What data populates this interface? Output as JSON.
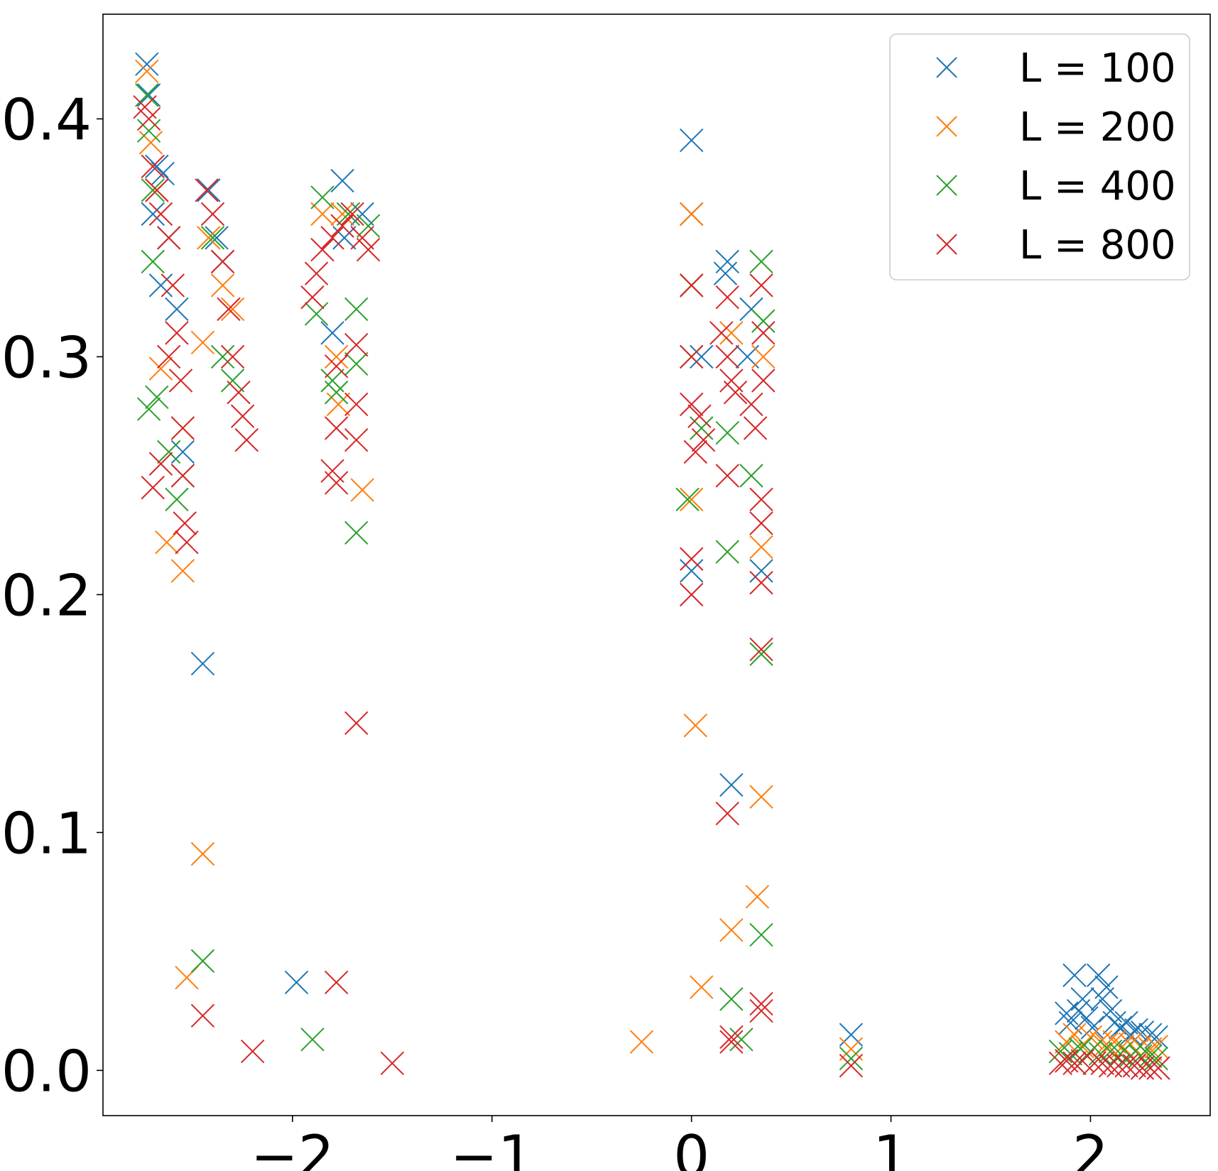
{
  "chart_data": {
    "type": "scatter",
    "title": "",
    "xlabel": "",
    "ylabel": "",
    "xlim": [
      -2.95,
      2.6
    ],
    "ylim": [
      -0.019,
      0.444
    ],
    "x_ticks": [
      -2,
      -1,
      0,
      1,
      2
    ],
    "x_tick_labels": [
      "−2",
      "−1",
      "0",
      "1",
      "2"
    ],
    "y_ticks": [
      0.0,
      0.1,
      0.2,
      0.3,
      0.4
    ],
    "y_tick_labels": [
      "0.0",
      "0.1",
      "0.2",
      "0.3",
      "0.4"
    ],
    "grid": false,
    "legend_position": "top-right",
    "marker": "x",
    "series": [
      {
        "name": "L = 100",
        "color": "#1f77b4",
        "points": [
          [
            -2.73,
            0.423
          ],
          [
            -2.72,
            0.41
          ],
          [
            -2.68,
            0.38
          ],
          [
            -2.65,
            0.377
          ],
          [
            -2.7,
            0.36
          ],
          [
            -2.62,
            0.35
          ],
          [
            -2.66,
            0.33
          ],
          [
            -2.58,
            0.32
          ],
          [
            -2.55,
            0.26
          ],
          [
            -2.45,
            0.171
          ],
          [
            -2.42,
            0.37
          ],
          [
            -2.38,
            0.35
          ],
          [
            -2.35,
            0.34
          ],
          [
            -1.98,
            0.037
          ],
          [
            -1.75,
            0.374
          ],
          [
            -1.8,
            0.31
          ],
          [
            -1.74,
            0.35
          ],
          [
            -1.65,
            0.36
          ],
          [
            0.0,
            0.391
          ],
          [
            0.0,
            0.36
          ],
          [
            0.05,
            0.3
          ],
          [
            0.0,
            0.21
          ],
          [
            0.18,
            0.34
          ],
          [
            0.17,
            0.335
          ],
          [
            0.2,
            0.12
          ],
          [
            0.28,
            0.3
          ],
          [
            0.3,
            0.32
          ],
          [
            0.35,
            0.21
          ],
          [
            0.8,
            0.015
          ],
          [
            1.88,
            0.024
          ],
          [
            1.9,
            0.02
          ],
          [
            1.92,
            0.04
          ],
          [
            1.94,
            0.025
          ],
          [
            1.96,
            0.03
          ],
          [
            1.98,
            0.022
          ],
          [
            2.01,
            0.018
          ],
          [
            2.04,
            0.04
          ],
          [
            2.06,
            0.03
          ],
          [
            2.08,
            0.035
          ],
          [
            2.1,
            0.025
          ],
          [
            2.12,
            0.02
          ],
          [
            2.15,
            0.018
          ],
          [
            2.18,
            0.02
          ],
          [
            2.2,
            0.015
          ],
          [
            2.23,
            0.017
          ],
          [
            2.26,
            0.016
          ],
          [
            2.3,
            0.015
          ],
          [
            2.33,
            0.014
          ]
        ]
      },
      {
        "name": "L = 200",
        "color": "#ff7f0e",
        "points": [
          [
            -2.73,
            0.42
          ],
          [
            -2.71,
            0.39
          ],
          [
            -2.68,
            0.37
          ],
          [
            -2.66,
            0.295
          ],
          [
            -2.63,
            0.222
          ],
          [
            -2.55,
            0.21
          ],
          [
            -2.55,
            0.27
          ],
          [
            -2.53,
            0.039
          ],
          [
            -2.45,
            0.306
          ],
          [
            -2.45,
            0.091
          ],
          [
            -2.42,
            0.35
          ],
          [
            -2.35,
            0.33
          ],
          [
            -2.3,
            0.32
          ],
          [
            -1.85,
            0.36
          ],
          [
            -1.75,
            0.36
          ],
          [
            -1.78,
            0.3
          ],
          [
            -1.77,
            0.28
          ],
          [
            -1.65,
            0.244
          ],
          [
            -0.25,
            0.012
          ],
          [
            0.0,
            0.36
          ],
          [
            0.0,
            0.33
          ],
          [
            0.0,
            0.24
          ],
          [
            0.02,
            0.145
          ],
          [
            0.05,
            0.035
          ],
          [
            0.2,
            0.059
          ],
          [
            0.2,
            0.31
          ],
          [
            0.33,
            0.073
          ],
          [
            0.35,
            0.115
          ],
          [
            0.35,
            0.22
          ],
          [
            0.36,
            0.3
          ],
          [
            0.8,
            0.009
          ],
          [
            1.88,
            0.012
          ],
          [
            1.92,
            0.015
          ],
          [
            1.96,
            0.01
          ],
          [
            2.0,
            0.014
          ],
          [
            2.05,
            0.012
          ],
          [
            2.08,
            0.011
          ],
          [
            2.12,
            0.012
          ],
          [
            2.16,
            0.01
          ],
          [
            2.2,
            0.011
          ],
          [
            2.25,
            0.01
          ],
          [
            2.3,
            0.009
          ],
          [
            2.33,
            0.01
          ]
        ]
      },
      {
        "name": "L = 400",
        "color": "#2ca02c",
        "points": [
          [
            -2.73,
            0.41
          ],
          [
            -2.72,
            0.395
          ],
          [
            -2.7,
            0.37
          ],
          [
            -2.7,
            0.34
          ],
          [
            -2.72,
            0.278
          ],
          [
            -2.68,
            0.283
          ],
          [
            -2.62,
            0.26
          ],
          [
            -2.58,
            0.24
          ],
          [
            -2.55,
            0.25
          ],
          [
            -2.45,
            0.046
          ],
          [
            -2.4,
            0.35
          ],
          [
            -2.35,
            0.3
          ],
          [
            -2.3,
            0.29
          ],
          [
            -1.9,
            0.013
          ],
          [
            -1.88,
            0.318
          ],
          [
            -1.85,
            0.367
          ],
          [
            -1.8,
            0.29
          ],
          [
            -1.78,
            0.285
          ],
          [
            -1.72,
            0.36
          ],
          [
            -1.68,
            0.226
          ],
          [
            -1.68,
            0.297
          ],
          [
            -1.68,
            0.32
          ],
          [
            -1.62,
            0.355
          ],
          [
            -0.02,
            0.24
          ],
          [
            0.0,
            0.33
          ],
          [
            0.0,
            0.3
          ],
          [
            0.05,
            0.27
          ],
          [
            0.18,
            0.268
          ],
          [
            0.18,
            0.218
          ],
          [
            0.2,
            0.03
          ],
          [
            0.25,
            0.013
          ],
          [
            0.3,
            0.25
          ],
          [
            0.35,
            0.057
          ],
          [
            0.35,
            0.175
          ],
          [
            0.35,
            0.34
          ],
          [
            0.36,
            0.315
          ],
          [
            0.8,
            0.005
          ],
          [
            1.85,
            0.008
          ],
          [
            1.9,
            0.007
          ],
          [
            1.95,
            0.009
          ],
          [
            2.0,
            0.008
          ],
          [
            2.05,
            0.007
          ],
          [
            2.1,
            0.008
          ],
          [
            2.15,
            0.007
          ],
          [
            2.2,
            0.006
          ],
          [
            2.25,
            0.006
          ],
          [
            2.3,
            0.006
          ],
          [
            2.33,
            0.005
          ]
        ]
      },
      {
        "name": "L = 800",
        "color": "#d62728",
        "points": [
          [
            -2.74,
            0.405
          ],
          [
            -2.72,
            0.4
          ],
          [
            -2.7,
            0.38
          ],
          [
            -2.68,
            0.37
          ],
          [
            -2.66,
            0.36
          ],
          [
            -2.62,
            0.35
          ],
          [
            -2.6,
            0.33
          ],
          [
            -2.58,
            0.31
          ],
          [
            -2.56,
            0.29
          ],
          [
            -2.55,
            0.27
          ],
          [
            -2.55,
            0.25
          ],
          [
            -2.54,
            0.23
          ],
          [
            -2.53,
            0.222
          ],
          [
            -2.7,
            0.245
          ],
          [
            -2.66,
            0.255
          ],
          [
            -2.62,
            0.3
          ],
          [
            -2.45,
            0.023
          ],
          [
            -2.43,
            0.37
          ],
          [
            -2.4,
            0.36
          ],
          [
            -2.35,
            0.34
          ],
          [
            -2.32,
            0.32
          ],
          [
            -2.3,
            0.3
          ],
          [
            -2.27,
            0.285
          ],
          [
            -2.25,
            0.275
          ],
          [
            -2.23,
            0.265
          ],
          [
            -2.2,
            0.008
          ],
          [
            -1.78,
            0.037
          ],
          [
            -1.9,
            0.325
          ],
          [
            -1.88,
            0.335
          ],
          [
            -1.85,
            0.345
          ],
          [
            -1.8,
            0.35
          ],
          [
            -1.75,
            0.355
          ],
          [
            -1.7,
            0.36
          ],
          [
            -1.65,
            0.35
          ],
          [
            -1.62,
            0.345
          ],
          [
            -1.78,
            0.296
          ],
          [
            -1.78,
            0.27
          ],
          [
            -1.8,
            0.252
          ],
          [
            -1.78,
            0.247
          ],
          [
            -1.68,
            0.305
          ],
          [
            -1.68,
            0.28
          ],
          [
            -1.68,
            0.265
          ],
          [
            -1.68,
            0.146
          ],
          [
            -1.5,
            0.003
          ],
          [
            0.0,
            0.33
          ],
          [
            0.0,
            0.3
          ],
          [
            0.0,
            0.28
          ],
          [
            0.02,
            0.26
          ],
          [
            0.0,
            0.215
          ],
          [
            0.0,
            0.2
          ],
          [
            0.04,
            0.275
          ],
          [
            0.06,
            0.265
          ],
          [
            0.15,
            0.31
          ],
          [
            0.18,
            0.3
          ],
          [
            0.2,
            0.29
          ],
          [
            0.22,
            0.285
          ],
          [
            0.18,
            0.25
          ],
          [
            0.18,
            0.325
          ],
          [
            0.18,
            0.108
          ],
          [
            0.2,
            0.014
          ],
          [
            0.2,
            0.012
          ],
          [
            0.3,
            0.28
          ],
          [
            0.32,
            0.27
          ],
          [
            0.35,
            0.33
          ],
          [
            0.36,
            0.31
          ],
          [
            0.36,
            0.29
          ],
          [
            0.35,
            0.24
          ],
          [
            0.35,
            0.23
          ],
          [
            0.35,
            0.205
          ],
          [
            0.35,
            0.177
          ],
          [
            0.35,
            0.028
          ],
          [
            0.35,
            0.025
          ],
          [
            0.8,
            0.002
          ],
          [
            1.85,
            0.003
          ],
          [
            1.88,
            0.004
          ],
          [
            1.92,
            0.003
          ],
          [
            1.96,
            0.004
          ],
          [
            2.02,
            0.003
          ],
          [
            2.06,
            0.003
          ],
          [
            2.1,
            0.002
          ],
          [
            2.14,
            0.002
          ],
          [
            2.18,
            0.002
          ],
          [
            2.22,
            0.002
          ],
          [
            2.26,
            0.001
          ],
          [
            2.3,
            0.001
          ],
          [
            2.34,
            0.001
          ]
        ]
      }
    ]
  }
}
